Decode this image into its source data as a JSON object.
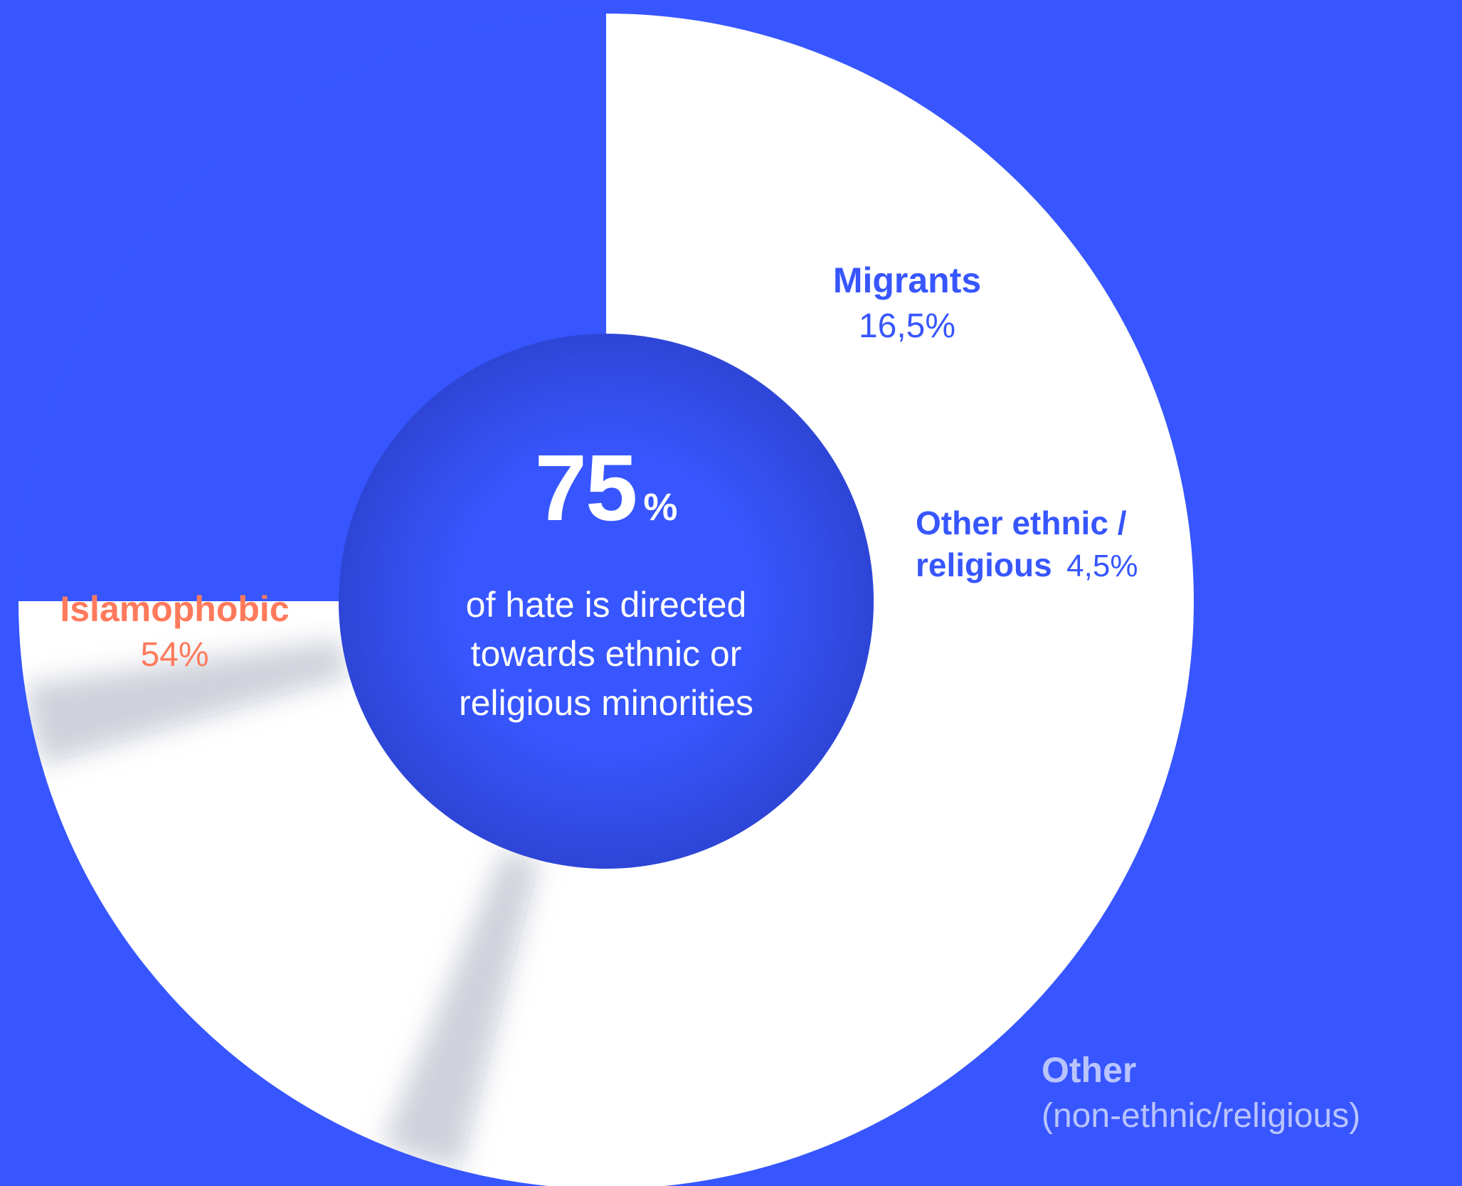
{
  "colors": {
    "background": "#3756FF",
    "slice_white": "#FFFFFF",
    "slice_blue": "#3756FF",
    "center_blue": "#3756FF",
    "islamophobic_label": "#FF7A5C",
    "blue_label": "#3756FF",
    "other_label": "#B9C4FF",
    "center_text": "#FFFFFF"
  },
  "chart_data": {
    "type": "pie",
    "style": "donut",
    "start_angle_deg": 90,
    "direction": "clockwise",
    "slices": [
      {
        "name": "Islamophobic",
        "value": 54,
        "label": "54%",
        "color": "#FFFFFF"
      },
      {
        "name": "Migrants",
        "value": 16.5,
        "label": "16,5%",
        "color": "#FFFFFF"
      },
      {
        "name": "Other ethnic / religious",
        "value": 4.5,
        "label": "4,5%",
        "color": "#FFFFFF"
      },
      {
        "name": "Other (non-ethnic/religious)",
        "value": 25,
        "label": "",
        "color": "#3756FF"
      }
    ],
    "center": {
      "value": "75",
      "unit": "%",
      "caption": [
        "of hate is directed",
        "towards ethnic or",
        "religious minorities"
      ]
    },
    "labels": {
      "islamophobic": {
        "name": "Islamophobic",
        "value": "54%"
      },
      "migrants": {
        "name": "Migrants",
        "value": "16,5%"
      },
      "other_ethnic": {
        "name_line1": "Other ethnic /",
        "name_line2": "religious",
        "value": "4,5%"
      },
      "other": {
        "name": "Other",
        "value": "(non-ethnic/religious)"
      }
    }
  }
}
